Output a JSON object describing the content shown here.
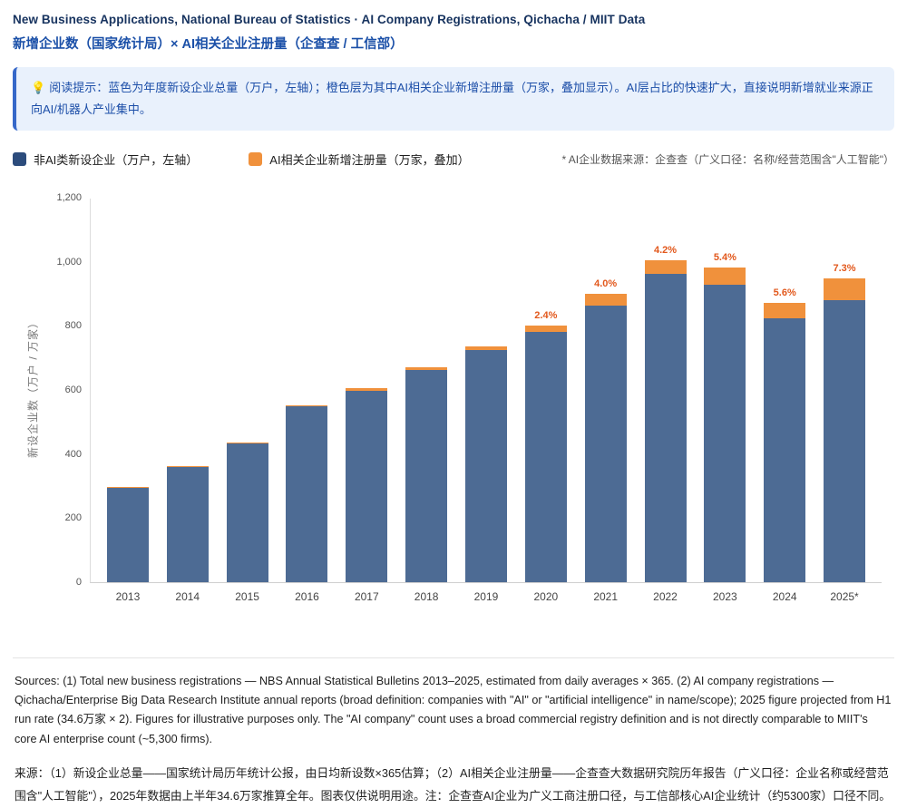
{
  "header": {
    "title_en": "New Business Applications, National Bureau of Statistics · AI Company Registrations, Qichacha / MIIT Data",
    "title_zh": "新增企业数（国家统计局）× AI相关企业注册量（企查查 / 工信部）"
  },
  "tip": {
    "icon_glyph": "💡",
    "text": "阅读提示：蓝色为年度新设企业总量（万户，左轴）；橙色层为其中AI相关企业新增注册量（万家，叠加显示）。AI层占比的快速扩大，直接说明新增就业来源正向AI/机器人产业集中。"
  },
  "legend": {
    "items": [
      {
        "label": "非AI类新设企业（万户，左轴）",
        "color": "#2c4c7c"
      },
      {
        "label": "AI相关企业新增注册量（万家，叠加）",
        "color": "#f0913c"
      }
    ],
    "note": "* AI企业数据来源：企查查（广义口径：名称/经营范围含\"人工智能\"）"
  },
  "chart_data": {
    "type": "bar",
    "stacked": true,
    "title": "",
    "categories": [
      "2013",
      "2014",
      "2015",
      "2016",
      "2017",
      "2018",
      "2019",
      "2020",
      "2021",
      "2022",
      "2023",
      "2024",
      "2025*"
    ],
    "series": [
      {
        "name": "非AI类新设企业（万户，左轴）",
        "color": "#4d6b94",
        "values": [
          294,
          360,
          433,
          548,
          598,
          662,
          724,
          781,
          864,
          963,
          928,
          824,
          880
        ]
      },
      {
        "name": "AI相关企业新增注册量（万家，叠加）",
        "color": "#f0913c",
        "values": [
          1,
          2,
          3,
          5,
          7,
          9,
          11,
          19,
          36,
          42,
          53,
          49,
          69
        ]
      }
    ],
    "bar_labels": [
      "",
      "",
      "",
      "",
      "",
      "",
      "",
      "2.4%",
      "4.0%",
      "4.2%",
      "5.4%",
      "5.6%",
      "7.3%"
    ],
    "bar_label_color": "#e2581c",
    "xlabel": "",
    "ylabel": "新设企业数（万户 / 万家）",
    "ylim": [
      0,
      1200
    ],
    "yticks": [
      0,
      200,
      400,
      600,
      800,
      1000,
      1200
    ],
    "ytick_labels": [
      "0",
      "200",
      "400",
      "600",
      "800",
      "1,000",
      "1,200"
    ],
    "grid": false,
    "legend_position": "top"
  },
  "footer": {
    "sources_en": "Sources: (1) Total new business registrations — NBS Annual Statistical Bulletins 2013–2025, estimated from daily averages × 365. (2) AI company registrations — Qichacha/Enterprise Big Data Research Institute annual reports (broad definition: companies with \"AI\" or \"artificial intelligence\" in name/scope); 2025 figure projected from H1 run rate (34.6万家 × 2). Figures for illustrative purposes only. The \"AI company\" count uses a broad commercial registry definition and is not directly comparable to MIIT's core AI enterprise count (~5,300 firms).",
    "sources_zh": "来源：（1）新设企业总量——国家统计局历年统计公报，由日均新设数×365估算；（2）AI相关企业注册量——企查查大数据研究院历年报告（广义口径：企业名称或经营范围含\"人工智能\"），2025年数据由上半年34.6万家推算全年。图表仅供说明用途。注：企查查AI企业为广义工商注册口径，与工信部核心AI企业统计（约5300家）口径不同。"
  }
}
